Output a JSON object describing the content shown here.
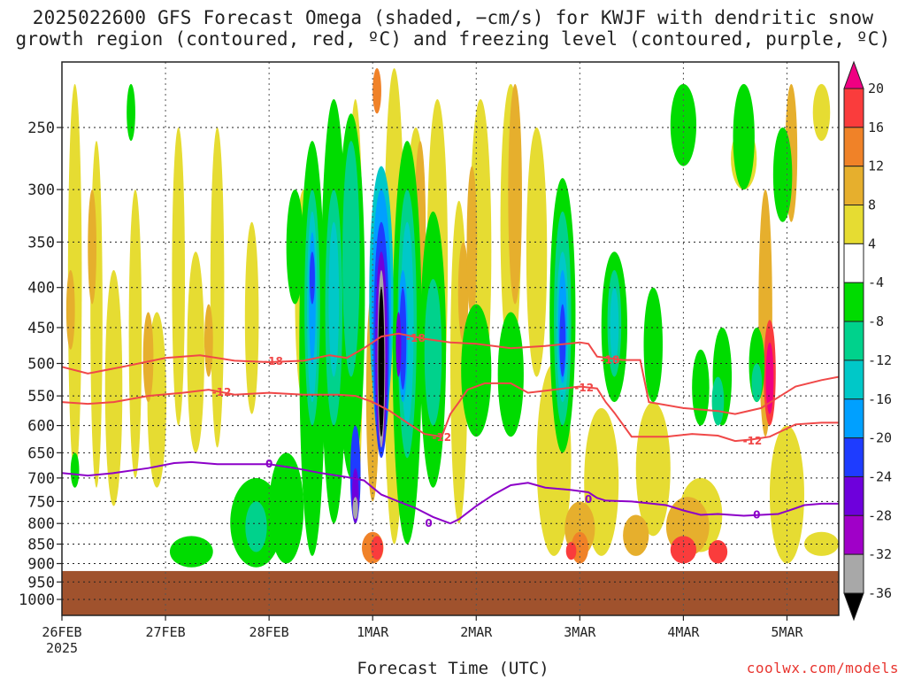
{
  "header": {
    "title_line1": "2025022600 GFS Forecast Omega (shaded, −cm/s) for KWJF with dendritic snow",
    "title_line2": "growth region (contoured, red, ºC) and freezing level (contoured, purple, ºC)"
  },
  "footer": {
    "xlabel": "Forecast Time (UTC)",
    "credit": "coolwx.com/models"
  },
  "chart_data": {
    "type": "heatmap",
    "title": "2025022600 GFS Forecast Omega (shaded, −cm/s) for KWJF with dendritic snow growth region (contoured, red, ºC) and freezing level (contoured, purple, ºC)",
    "xlabel": "Forecast Time (UTC)",
    "ylabel": "",
    "x_ticks": [
      {
        "label": "26FEB",
        "label2": "2025",
        "hour": 0
      },
      {
        "label": "27FEB",
        "hour": 24
      },
      {
        "label": "28FEB",
        "hour": 48
      },
      {
        "label": "1MAR",
        "hour": 72
      },
      {
        "label": "2MAR",
        "hour": 96
      },
      {
        "label": "3MAR",
        "hour": 120
      },
      {
        "label": "4MAR",
        "hour": 144
      },
      {
        "label": "5MAR",
        "hour": 168
      }
    ],
    "xlim": [
      0,
      180
    ],
    "y_levels": [
      250,
      300,
      350,
      400,
      450,
      500,
      550,
      600,
      650,
      700,
      750,
      800,
      850,
      900,
      950,
      1000
    ],
    "ylim": [
      200,
      1050
    ],
    "y_scale": "log",
    "ground_level_hpa": 920,
    "colorbar": {
      "levels": [
        -36,
        -32,
        -28,
        -24,
        -20,
        -16,
        -12,
        -8,
        -4,
        4,
        8,
        12,
        16,
        20
      ],
      "colors": [
        "#000000",
        "#a8a8a8",
        "#a000c8",
        "#6e00dc",
        "#1e3cff",
        "#00a0ff",
        "#00c8c8",
        "#00d28c",
        "#00dc00",
        "#ffffff",
        "#e6dc32",
        "#e6af2d",
        "#f08228",
        "#fa3c3c",
        "#f00082"
      ]
    },
    "fields": {
      "ground": "#a0522d"
    },
    "contours": [
      {
        "name": "-18",
        "color": "#f04848",
        "points": [
          [
            0,
            505
          ],
          [
            6,
            515
          ],
          [
            14,
            505
          ],
          [
            24,
            492
          ],
          [
            32,
            488
          ],
          [
            40,
            496
          ],
          [
            48,
            498
          ],
          [
            56,
            496
          ],
          [
            62,
            488
          ],
          [
            66,
            492
          ],
          [
            70,
            478
          ],
          [
            74,
            462
          ],
          [
            78,
            458
          ],
          [
            84,
            465
          ],
          [
            90,
            470
          ],
          [
            96,
            472
          ],
          [
            104,
            478
          ],
          [
            112,
            475
          ],
          [
            120,
            470
          ],
          [
            122,
            472
          ],
          [
            124,
            490
          ],
          [
            130,
            495
          ],
          [
            134,
            495
          ],
          [
            136,
            560
          ],
          [
            144,
            570
          ],
          [
            152,
            575
          ],
          [
            156,
            580
          ],
          [
            162,
            570
          ],
          [
            170,
            535
          ],
          [
            176,
            525
          ],
          [
            180,
            520
          ]
        ],
        "labels": [
          [
            49,
            497
          ],
          [
            82,
            464
          ],
          [
            127,
            495
          ]
        ]
      },
      {
        "name": "-12",
        "color": "#f04848",
        "points": [
          [
            0,
            560
          ],
          [
            6,
            563
          ],
          [
            12,
            560
          ],
          [
            20,
            550
          ],
          [
            28,
            545
          ],
          [
            34,
            540
          ],
          [
            40,
            548
          ],
          [
            48,
            545
          ],
          [
            56,
            548
          ],
          [
            64,
            548
          ],
          [
            68,
            550
          ],
          [
            72,
            560
          ],
          [
            76,
            575
          ],
          [
            80,
            595
          ],
          [
            84,
            615
          ],
          [
            88,
            620
          ],
          [
            90,
            580
          ],
          [
            92,
            560
          ],
          [
            94,
            540
          ],
          [
            98,
            530
          ],
          [
            104,
            530
          ],
          [
            108,
            545
          ],
          [
            114,
            540
          ],
          [
            120,
            535
          ],
          [
            124,
            538
          ],
          [
            126,
            560
          ],
          [
            128,
            578
          ],
          [
            132,
            620
          ],
          [
            140,
            620
          ],
          [
            146,
            615
          ],
          [
            152,
            618
          ],
          [
            156,
            628
          ],
          [
            160,
            625
          ],
          [
            164,
            620
          ],
          [
            170,
            598
          ],
          [
            176,
            595
          ],
          [
            180,
            595
          ]
        ],
        "labels": [
          [
            37,
            544
          ],
          [
            88,
            621
          ],
          [
            121,
            537
          ],
          [
            160,
            628
          ]
        ]
      },
      {
        "name": "0",
        "color": "#8c00c8",
        "points": [
          [
            0,
            690
          ],
          [
            6,
            695
          ],
          [
            12,
            690
          ],
          [
            20,
            680
          ],
          [
            26,
            670
          ],
          [
            30,
            668
          ],
          [
            36,
            672
          ],
          [
            44,
            672
          ],
          [
            48,
            672
          ],
          [
            54,
            680
          ],
          [
            60,
            690
          ],
          [
            66,
            698
          ],
          [
            70,
            705
          ],
          [
            72,
            720
          ],
          [
            74,
            735
          ],
          [
            78,
            750
          ],
          [
            82,
            765
          ],
          [
            86,
            785
          ],
          [
            90,
            800
          ],
          [
            92,
            790
          ],
          [
            96,
            760
          ],
          [
            100,
            735
          ],
          [
            104,
            715
          ],
          [
            108,
            710
          ],
          [
            112,
            720
          ],
          [
            118,
            725
          ],
          [
            122,
            730
          ],
          [
            124,
            742
          ],
          [
            126,
            748
          ],
          [
            132,
            750
          ],
          [
            140,
            758
          ],
          [
            144,
            770
          ],
          [
            148,
            780
          ],
          [
            152,
            778
          ],
          [
            158,
            782
          ],
          [
            162,
            780
          ],
          [
            166,
            778
          ],
          [
            170,
            765
          ],
          [
            172,
            758
          ],
          [
            176,
            755
          ],
          [
            180,
            755
          ]
        ],
        "labels": [
          [
            48,
            672
          ],
          [
            85,
            800
          ],
          [
            122,
            745
          ],
          [
            161,
            780
          ]
        ]
      }
    ]
  }
}
